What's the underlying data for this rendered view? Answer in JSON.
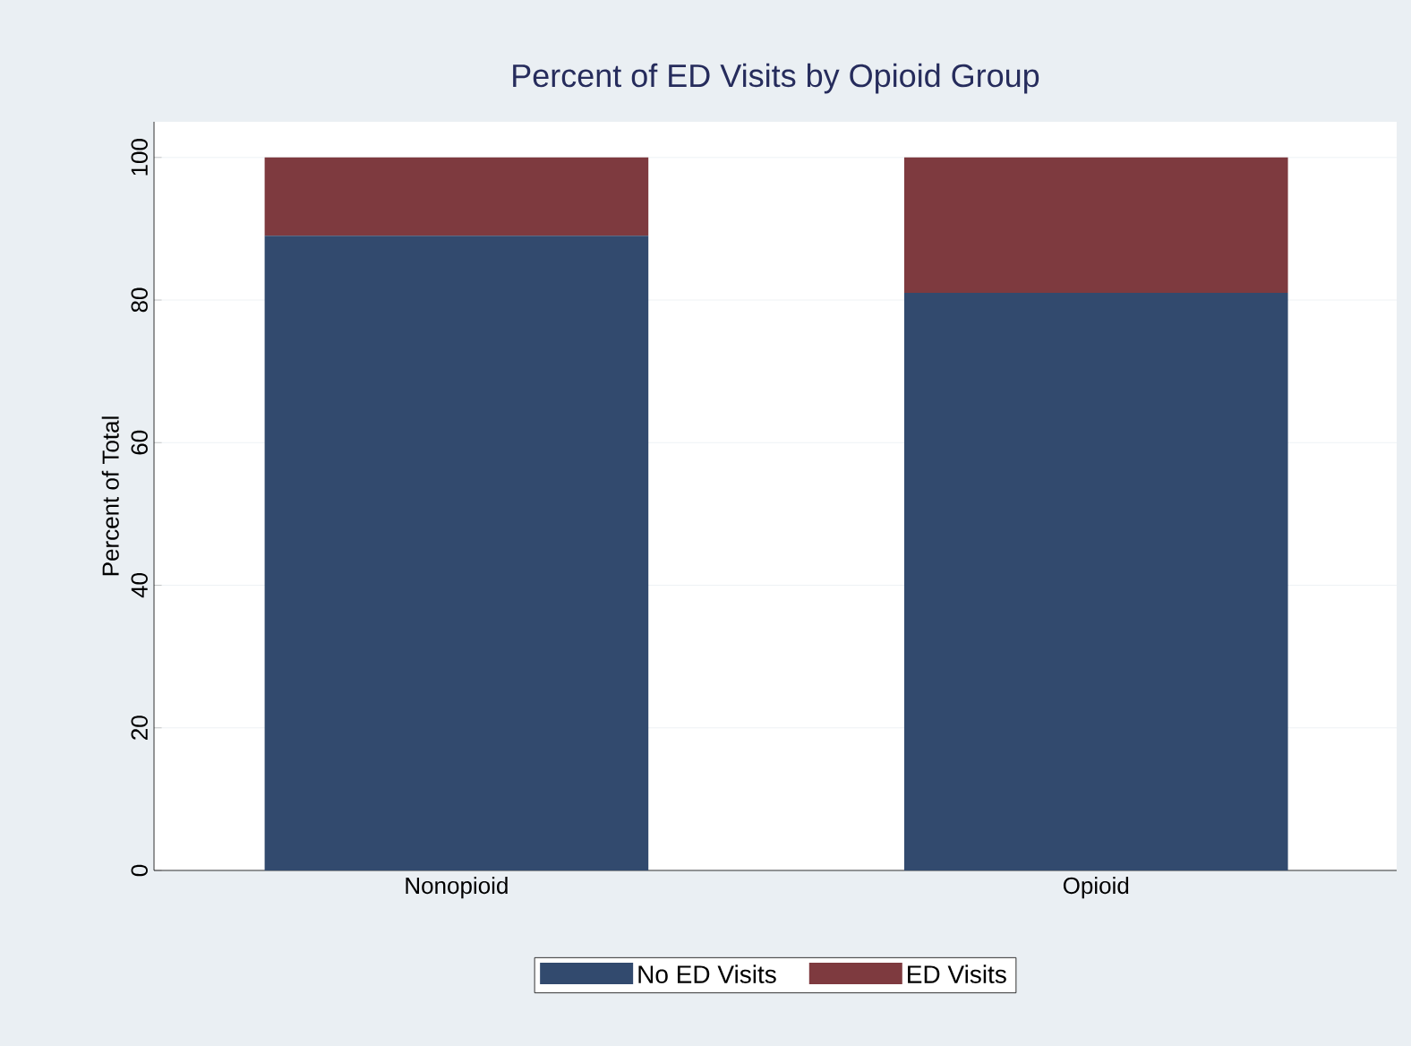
{
  "chart_data": {
    "type": "bar",
    "stacked": true,
    "title": "Percent of ED Visits by Opioid Group",
    "ylabel": "Percent of Total",
    "categories": [
      "Nonopioid",
      "Opioid"
    ],
    "series": [
      {
        "name": "No ED Visits",
        "color": "#324a6e",
        "values": [
          89,
          81
        ]
      },
      {
        "name": "ED Visits",
        "color": "#7e3a3f",
        "values": [
          11,
          19
        ]
      }
    ],
    "ylim": [
      0,
      105
    ],
    "yticks": [
      0,
      20,
      40,
      60,
      80,
      100
    ],
    "grid": "y",
    "legend": "bottom"
  }
}
